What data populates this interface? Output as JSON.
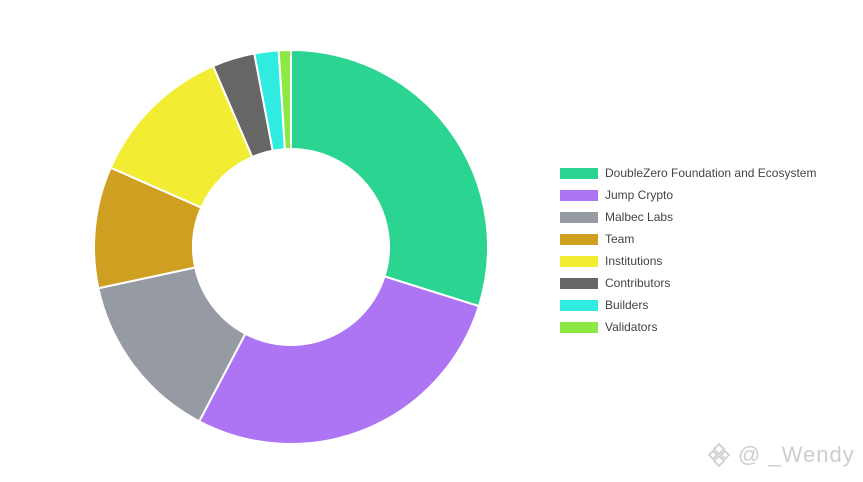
{
  "chart_data": {
    "type": "pie",
    "title": "",
    "donut": true,
    "legend_position": "right",
    "series": [
      {
        "label": "DoubleZero Foundation and Ecosystem",
        "value": 30,
        "color": "#2bd491"
      },
      {
        "label": "Jump Crypto",
        "value": 28,
        "color": "#ad74f3"
      },
      {
        "label": "Malbec Labs",
        "value": 14,
        "color": "#959aa3"
      },
      {
        "label": "Team",
        "value": 10,
        "color": "#cf9f22"
      },
      {
        "label": "Institutions",
        "value": 12,
        "color": "#f2ec33"
      },
      {
        "label": "Contributors",
        "value": 3.5,
        "color": "#666666"
      },
      {
        "label": "Builders",
        "value": 2,
        "color": "#30ece0"
      },
      {
        "label": "Validators",
        "value": 1,
        "color": "#8ce842"
      }
    ]
  },
  "watermark": {
    "text": "@ _Wendy",
    "logo_icon": "binance-diamond-icon"
  }
}
